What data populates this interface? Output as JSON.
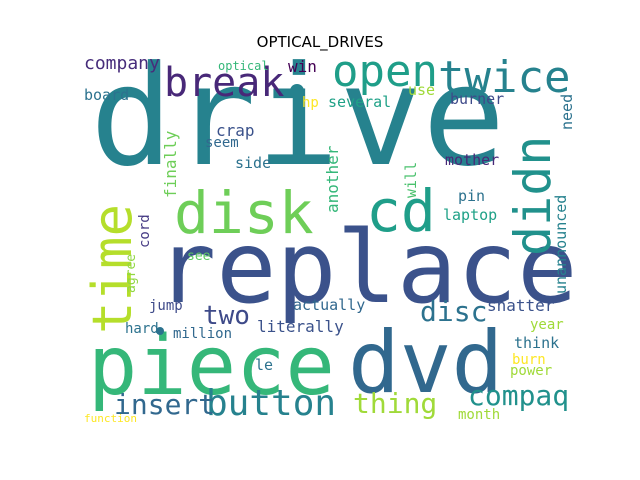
{
  "title": "OPTICAL_DRIVES",
  "words": [
    {
      "text": "drive",
      "color": "#26828e"
    },
    {
      "text": "replace",
      "color": "#3b528b"
    },
    {
      "text": "piece",
      "color": "#35b779"
    },
    {
      "text": "dvd",
      "color": "#31688e"
    },
    {
      "text": "disk",
      "color": "#6ece58"
    },
    {
      "text": "cd",
      "color": "#1f9e89"
    },
    {
      "text": "time",
      "color": "#b5de2b"
    },
    {
      "text": "didn",
      "color": "#21918c"
    },
    {
      "text": "open",
      "color": "#1f9e89"
    },
    {
      "text": "twice",
      "color": "#26828e"
    },
    {
      "text": "break",
      "color": "#482878"
    },
    {
      "text": "button",
      "color": "#26828e"
    },
    {
      "text": "insert",
      "color": "#31688e"
    },
    {
      "text": "thing",
      "color": "#a0da39"
    },
    {
      "text": "compaq",
      "color": "#21918c"
    },
    {
      "text": "disc",
      "color": "#2c728e"
    },
    {
      "text": "two",
      "color": "#3e4a89"
    },
    {
      "text": "company",
      "color": "#472d7b"
    },
    {
      "text": "win",
      "color": "#440154"
    },
    {
      "text": "board",
      "color": "#2c728e"
    },
    {
      "text": "optical",
      "color": "#35b779"
    },
    {
      "text": "hp",
      "color": "#fde725"
    },
    {
      "text": "several",
      "color": "#1fa187"
    },
    {
      "text": "use",
      "color": "#a0da39"
    },
    {
      "text": "burner",
      "color": "#3e4a89"
    },
    {
      "text": "need",
      "color": "#2c728e"
    },
    {
      "text": "crap",
      "color": "#3b528b"
    },
    {
      "text": "seem",
      "color": "#31688e"
    },
    {
      "text": "finally",
      "color": "#6ece58"
    },
    {
      "text": "side",
      "color": "#2c728e"
    },
    {
      "text": "another",
      "color": "#35b779"
    },
    {
      "text": "will",
      "color": "#4ac16d"
    },
    {
      "text": "mother",
      "color": "#482878"
    },
    {
      "text": "unannounced",
      "color": "#26828e"
    },
    {
      "text": "cord",
      "color": "#443983"
    },
    {
      "text": "pin",
      "color": "#2c728e"
    },
    {
      "text": "laptop",
      "color": "#1fa187"
    },
    {
      "text": "agree",
      "color": "#90d743"
    },
    {
      "text": "see",
      "color": "#5ec962"
    },
    {
      "text": "jump",
      "color": "#3e4a89"
    },
    {
      "text": "actually",
      "color": "#31688e"
    },
    {
      "text": "shatter",
      "color": "#3b528b"
    },
    {
      "text": "hard",
      "color": "#2c728e"
    },
    {
      "text": "million",
      "color": "#31688e"
    },
    {
      "text": "literally",
      "color": "#3b528b"
    },
    {
      "text": "year",
      "color": "#a0da39"
    },
    {
      "text": "think",
      "color": "#2c728e"
    },
    {
      "text": "le",
      "color": "#2c728e"
    },
    {
      "text": "burn",
      "color": "#fde725"
    },
    {
      "text": "power",
      "color": "#a0da39"
    },
    {
      "text": "month",
      "color": "#a0da39"
    },
    {
      "text": "function",
      "color": "#fde725"
    }
  ],
  "dots": [
    {
      "color": "#2c728e"
    },
    {
      "color": "#26828e"
    }
  ]
}
